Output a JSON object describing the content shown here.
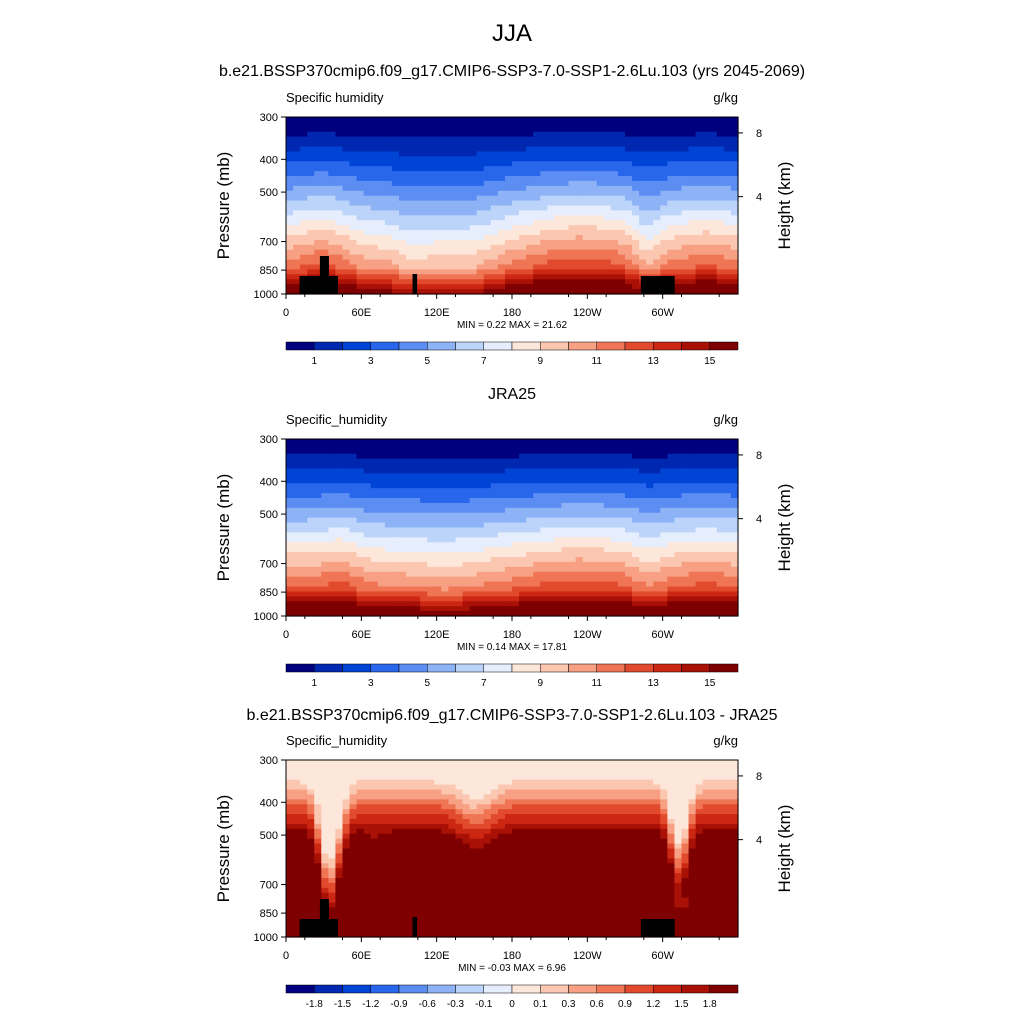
{
  "figure": {
    "title": "JJA"
  },
  "chart_data": [
    {
      "type": "heatmap",
      "title": "b.e21.BSSP370cmip6.f09_g17.CMIP6-SSP3-7.0-SSP1-2.6Lu.103 (yrs 2045-2069)",
      "variable": "Specific humidity",
      "units": "g/kg",
      "ylabel": "Pressure (mb)",
      "y2label": "Height (km)",
      "x_ticks": [
        "0",
        "60E",
        "120E",
        "180",
        "120W",
        "60W"
      ],
      "y_ticks": [
        300,
        400,
        500,
        700,
        850,
        1000
      ],
      "y2_ticks": [
        "8",
        "4"
      ],
      "stats_text": "MIN =   0.22  MAX =  21.62",
      "min": 0.22,
      "max": 21.62,
      "colorbar_labels": [
        "1",
        "3",
        "5",
        "7",
        "9",
        "11",
        "13",
        "15"
      ],
      "colors": [
        "#00007f",
        "#0027b0",
        "#0044d6",
        "#2866ec",
        "#5b8df2",
        "#8db3f6",
        "#bcd4fa",
        "#e6eefd",
        "#fde7da",
        "#fbc7b0",
        "#f7a083",
        "#ef7555",
        "#e24a2d",
        "#cc2712",
        "#a91107",
        "#7f0000"
      ]
    },
    {
      "type": "heatmap",
      "title": "JRA25",
      "variable": "Specific_humidity",
      "units": "g/kg",
      "ylabel": "Pressure (mb)",
      "y2label": "Height (km)",
      "x_ticks": [
        "0",
        "60E",
        "120E",
        "180",
        "120W",
        "60W"
      ],
      "y_ticks": [
        300,
        400,
        500,
        700,
        850,
        1000
      ],
      "y2_ticks": [
        "8",
        "4"
      ],
      "stats_text": "MIN =   0.14  MAX =  17.81",
      "min": 0.14,
      "max": 17.81,
      "colorbar_labels": [
        "1",
        "3",
        "5",
        "7",
        "9",
        "11",
        "13",
        "15"
      ],
      "colors": [
        "#00007f",
        "#0027b0",
        "#0044d6",
        "#2866ec",
        "#5b8df2",
        "#8db3f6",
        "#bcd4fa",
        "#e6eefd",
        "#fde7da",
        "#fbc7b0",
        "#f7a083",
        "#ef7555",
        "#e24a2d",
        "#cc2712",
        "#a91107",
        "#7f0000"
      ]
    },
    {
      "type": "heatmap",
      "title": "b.e21.BSSP370cmip6.f09_g17.CMIP6-SSP3-7.0-SSP1-2.6Lu.103 - JRA25",
      "variable": "Specific_humidity",
      "units": "g/kg",
      "ylabel": "Pressure (mb)",
      "y2label": "Height (km)",
      "x_ticks": [
        "0",
        "60E",
        "120E",
        "180",
        "120W",
        "60W"
      ],
      "y_ticks": [
        300,
        400,
        500,
        700,
        850,
        1000
      ],
      "y2_ticks": [
        "8",
        "4"
      ],
      "stats_text": "MIN =  -0.03  MAX =   6.96",
      "min": -0.03,
      "max": 6.96,
      "colorbar_labels": [
        "-1.8",
        "-1.5",
        "-1.2",
        "-0.9",
        "-0.6",
        "-0.3",
        "-0.1",
        "0",
        "0.1",
        "0.3",
        "0.6",
        "0.9",
        "1.2",
        "1.5",
        "1.8"
      ],
      "colors": [
        "#00007f",
        "#0027b0",
        "#0044d6",
        "#2866ec",
        "#5b8df2",
        "#8db3f6",
        "#bcd4fa",
        "#e6eefd",
        "#fde7da",
        "#fbc7b0",
        "#f7a083",
        "#ef7555",
        "#e24a2d",
        "#cc2712",
        "#a91107",
        "#7f0000"
      ]
    }
  ]
}
